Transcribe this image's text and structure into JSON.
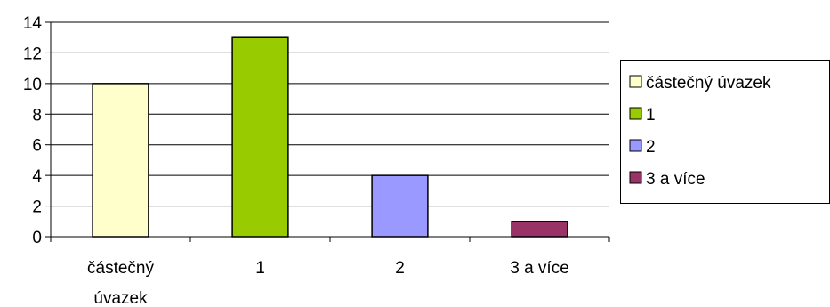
{
  "chart_data": {
    "type": "bar",
    "categories": [
      [
        "částečný",
        "úvazek"
      ],
      [
        "1"
      ],
      [
        "2"
      ],
      [
        "3 a více"
      ]
    ],
    "values": [
      10,
      13,
      4,
      1
    ],
    "colors": [
      "#ffffcc",
      "#99cc00",
      "#9999ff",
      "#993366"
    ],
    "ylim": [
      0,
      14
    ],
    "yticks": [
      "0",
      "2",
      "4",
      "6",
      "8",
      "10",
      "12",
      "14"
    ],
    "ytick_values": [
      0,
      2,
      4,
      6,
      8,
      10,
      12,
      14
    ],
    "grid": true,
    "legend": {
      "placement": "right",
      "items": [
        "částečný úvazek",
        "1",
        "2",
        "3 a více"
      ]
    }
  }
}
